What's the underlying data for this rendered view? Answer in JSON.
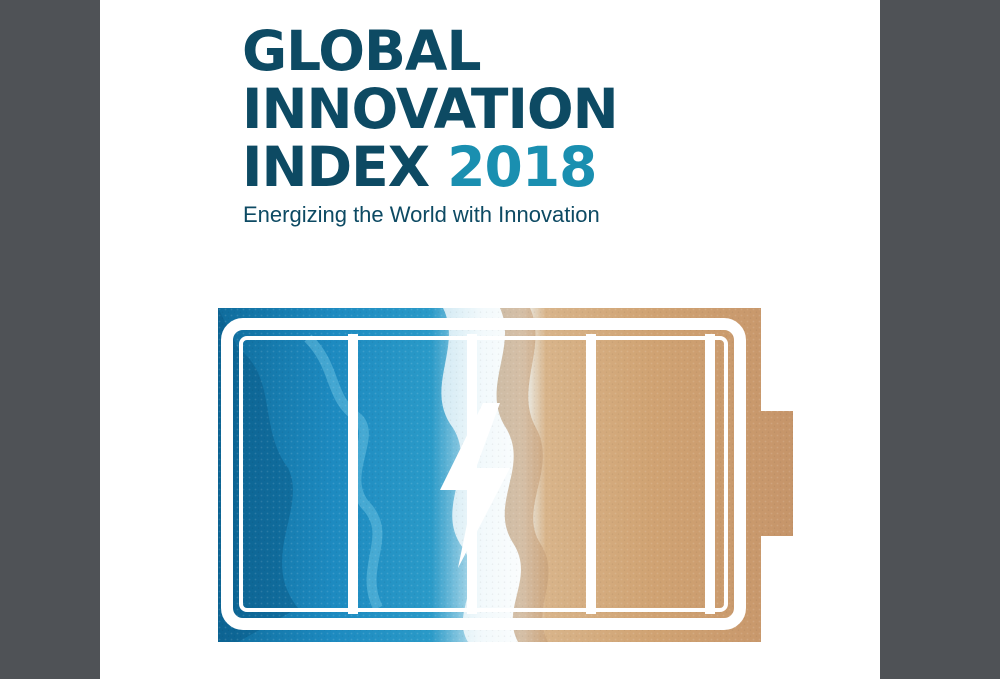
{
  "cover": {
    "title_line1": "GLOBAL",
    "title_line2": "INNOVATION",
    "title_line3_prefix": "INDEX",
    "title_year": "2018",
    "subtitle": "Energizing the World with Innovation",
    "artwork": "battery-icon"
  },
  "colors": {
    "title": "#0d4a63",
    "year": "#1a8fb0",
    "ocean": "#1b82b4",
    "sand": "#cfa274",
    "viewer_background": "#4f5256"
  }
}
